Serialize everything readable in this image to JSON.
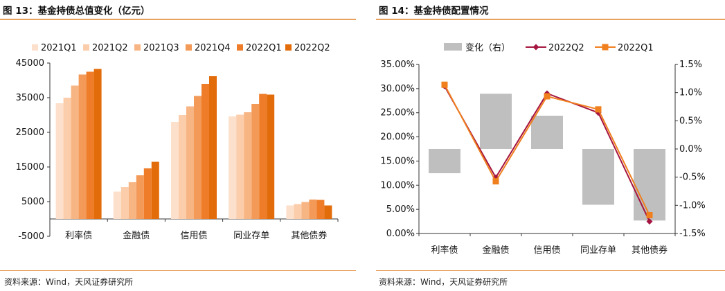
{
  "left_panel": {
    "title": "图 13：基金持债总值变化（亿元）",
    "source": "资料来源：Wind，天风证券研究所"
  },
  "right_panel": {
    "title": "图 14：基金持债配置情况",
    "source": "资料来源：Wind，天风证券研究所"
  },
  "colors": {
    "rule": "#e8a25e",
    "series": [
      "#fce0cb",
      "#fbcdab",
      "#f8b584",
      "#f39a58",
      "#ee7c28",
      "#e36c0a"
    ],
    "change_bar": "#bfbfbf",
    "line_q2": "#a5153f",
    "line_q1": "#f07f1e"
  },
  "chart_data": [
    {
      "type": "bar",
      "categories": [
        "利率债",
        "金融债",
        "信用债",
        "同业存单",
        "其他债券"
      ],
      "series": [
        {
          "name": "2021Q1",
          "values": [
            33400,
            7900,
            28000,
            29600,
            3900
          ]
        },
        {
          "name": "2021Q2",
          "values": [
            35000,
            9200,
            30000,
            30100,
            4300
          ]
        },
        {
          "name": "2021Q3",
          "values": [
            38500,
            10600,
            32500,
            30800,
            4900
          ]
        },
        {
          "name": "2021Q4",
          "values": [
            41700,
            12600,
            35500,
            33200,
            5600
          ]
        },
        {
          "name": "2022Q1",
          "values": [
            42500,
            14600,
            39000,
            36100,
            5500
          ]
        },
        {
          "name": "2022Q2",
          "values": [
            43300,
            16500,
            41200,
            35900,
            3900
          ]
        }
      ],
      "yticks": [
        45000,
        35000,
        25000,
        15000,
        5000,
        -5000
      ],
      "ylim": [
        -5000,
        45000
      ],
      "legend": "top"
    },
    {
      "type": "line",
      "categories": [
        "利率债",
        "金融债",
        "信用债",
        "同业存单",
        "其他债券"
      ],
      "series": [
        {
          "name": "变化（右）",
          "kind": "bar",
          "axis": "right",
          "values": [
            -0.0043,
            0.0098,
            0.0059,
            -0.0099,
            -0.0127
          ]
        },
        {
          "name": "2022Q2",
          "kind": "line",
          "axis": "left",
          "values": [
            0.305,
            0.116,
            0.29,
            0.25,
            0.025
          ]
        },
        {
          "name": "2022Q1",
          "kind": "line",
          "axis": "left",
          "values": [
            0.308,
            0.108,
            0.284,
            0.257,
            0.038
          ]
        }
      ],
      "yticks_left": [
        "35.00%",
        "30.00%",
        "25.00%",
        "20.00%",
        "15.00%",
        "10.00%",
        "5.00%",
        "0.00%"
      ],
      "yticks_right": [
        "1.5%",
        "1.0%",
        "0.5%",
        "0.0%",
        "-0.5%",
        "-1.0%",
        "-1.5%"
      ],
      "ylim_left": [
        0,
        0.35
      ],
      "ylim_right": [
        -0.015,
        0.015
      ],
      "legend": "top"
    }
  ]
}
